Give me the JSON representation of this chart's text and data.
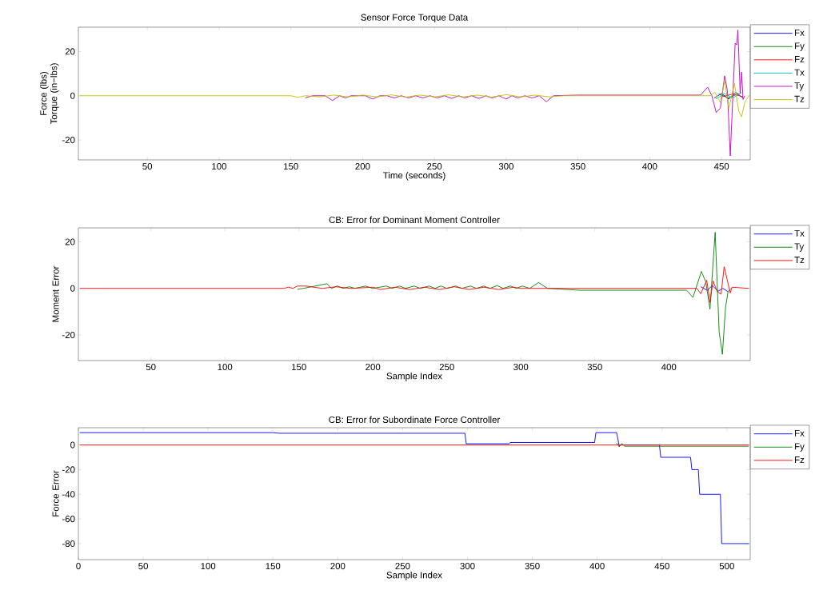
{
  "chart_data": [
    {
      "type": "line",
      "title": "Sensor Force Torque Data",
      "xlabel": "Time (seconds)",
      "ylabel": "Force (lbs) Torque (in−lbs)",
      "xlim": [
        2,
        470
      ],
      "ylim": [
        -29,
        31
      ],
      "xticks": [
        50,
        100,
        150,
        200,
        250,
        300,
        350,
        400,
        450
      ],
      "yticks": [
        -20,
        0,
        20
      ],
      "legend": "top right",
      "series": [
        {
          "name": "Fx",
          "color": "#0000ff",
          "x": [
            445,
            450,
            455,
            460,
            465
          ],
          "values": [
            -1,
            1,
            -1.5,
            1.5,
            -1
          ]
        },
        {
          "name": "Fy",
          "color": "#008000",
          "x": [
            448,
            455,
            462
          ],
          "values": [
            0.8,
            -1,
            1
          ]
        },
        {
          "name": "Fz",
          "color": "#ff0000",
          "x": [
            450,
            458,
            465
          ],
          "values": [
            -0.5,
            0.8,
            -0.5
          ]
        },
        {
          "name": "Tx",
          "color": "#00bfbf",
          "x": [
            446,
            452,
            458,
            464
          ],
          "values": [
            -1.5,
            1,
            -1,
            1.5
          ]
        },
        {
          "name": "Ty",
          "color": "#bf00bf",
          "x": [
            160,
            165,
            174,
            179,
            184,
            188,
            192,
            202,
            207,
            212,
            217,
            222,
            227,
            232,
            237,
            242,
            247,
            252,
            257,
            262,
            267,
            271,
            276,
            281,
            286,
            290,
            295,
            300,
            304,
            308,
            313,
            318,
            323,
            328,
            333,
            350,
            435.4,
            440.3,
            443.3,
            446.3,
            449.2,
            452.2,
            454.1,
            456.1,
            459.5,
            460.6,
            461.4,
            463,
            464,
            465,
            466.2
          ],
          "values": [
            -1,
            0,
            0,
            -2.2,
            0,
            -1,
            0,
            0,
            -1.5,
            0,
            0,
            -1,
            0,
            -1,
            0,
            -1,
            0,
            -1,
            0,
            -1.2,
            0,
            -1,
            0,
            -1.2,
            0,
            -1,
            0,
            -1.5,
            0,
            -1,
            0,
            -1,
            0,
            -2.7,
            0,
            0.3,
            0.3,
            3.9,
            0,
            -7.6,
            -5.6,
            9,
            2.2,
            -27.2,
            23.8,
            23,
            29.7,
            1,
            10.7,
            -1.7,
            0
          ]
        },
        {
          "name": "Tz",
          "color": "#bfbf00",
          "x": [
            3,
            150,
            155,
            160,
            170,
            180,
            190,
            200,
            210,
            220,
            230,
            240,
            250,
            260,
            270,
            280,
            290,
            300,
            310,
            320,
            330,
            340,
            442.3,
            445.3,
            449.2,
            452.2,
            455.1,
            459,
            462,
            464,
            466.2,
            469
          ],
          "values": [
            0,
            0,
            -0.7,
            0,
            -0.5,
            0.3,
            -0.5,
            0.3,
            -0.5,
            0.4,
            -0.6,
            0.3,
            -0.5,
            0.4,
            -0.5,
            0.3,
            -0.6,
            0.5,
            -0.5,
            0.3,
            -0.5,
            0,
            0,
            1.6,
            -3,
            6.8,
            -5.6,
            5.5,
            -7,
            -9.5,
            -3,
            0
          ]
        }
      ]
    },
    {
      "type": "line",
      "title": "CB: Error for Dominant Moment Controller",
      "xlabel": "Sample Index",
      "ylabel": "Moment Error",
      "xlim": [
        1,
        455
      ],
      "ylim": [
        -31,
        26
      ],
      "xticks": [
        50,
        100,
        150,
        200,
        250,
        300,
        350,
        400
      ],
      "yticks": [
        -20,
        0,
        20
      ],
      "legend": "top right",
      "series": [
        {
          "name": "Tx",
          "color": "#0000ff",
          "x": [
            421.6,
            425.9,
            429.4,
            433.3,
            436.5,
            440
          ],
          "values": [
            0.7,
            -0.8,
            1.2,
            -1.2,
            0,
            -1.4
          ]
        },
        {
          "name": "Ty",
          "color": "#008000",
          "x": [
            149,
            153,
            169,
            172,
            176,
            180,
            184,
            188,
            195,
            200,
            209,
            213,
            218,
            222,
            228,
            232,
            238,
            242,
            246,
            250,
            256,
            260,
            266,
            270,
            275,
            279,
            284,
            288,
            293,
            297,
            301,
            306,
            312,
            318,
            340,
            412,
            416.3,
            422,
            425,
            427.8,
            431.3,
            434,
            436.2,
            438.3,
            440,
            442
          ],
          "values": [
            -0.4,
            0,
            2.0,
            0,
            1,
            0,
            0.7,
            0,
            1,
            0,
            1,
            0,
            1,
            0,
            1,
            0,
            1,
            0,
            1,
            0,
            1,
            0,
            1,
            0,
            1,
            0,
            1.2,
            0,
            1,
            0,
            1,
            0,
            2.5,
            0,
            -0.8,
            -0.8,
            -3.9,
            7.3,
            2.7,
            -8.9,
            24.1,
            -18.8,
            -28.3,
            -8.3,
            -1.4,
            0
          ]
        },
        {
          "name": "Tz",
          "color": "#ff0000",
          "x": [
            2,
            140,
            143,
            146,
            149,
            155,
            160,
            166,
            175,
            185,
            200,
            205,
            215,
            225,
            235,
            245,
            255,
            265,
            275,
            285,
            295,
            300,
            419,
            421.6,
            425.6,
            427.8,
            429.9,
            432.7,
            435.3,
            437.4,
            439.2,
            441.5,
            442.7,
            454
          ],
          "values": [
            0,
            0,
            0.5,
            0,
            1,
            1,
            0.5,
            0,
            0.7,
            0,
            0.5,
            -0.5,
            0.5,
            -0.5,
            0.5,
            -0.5,
            0.7,
            -0.5,
            0.5,
            -0.5,
            0.5,
            0,
            0,
            -2.3,
            3.5,
            -6,
            3.2,
            -1.4,
            -2.5,
            9.3,
            4.4,
            -2,
            0.5,
            0
          ]
        }
      ]
    },
    {
      "type": "line",
      "title": "CB: Error for Subordinate Force Controller",
      "xlabel": "Sample Index",
      "ylabel": "Force Error",
      "xlim": [
        0,
        518
      ],
      "ylim": [
        -93,
        14
      ],
      "xticks": [
        0,
        50,
        100,
        150,
        200,
        250,
        300,
        350,
        400,
        450,
        500
      ],
      "yticks": [
        -80,
        -60,
        -40,
        -20,
        0
      ],
      "legend": "top right",
      "series": [
        {
          "name": "Fx",
          "color": "#0000ff",
          "x": [
            1,
            150,
            155,
            298,
            299,
            332,
            333,
            398,
            399,
            415,
            417,
            418,
            448,
            449,
            472,
            473,
            478,
            479,
            495,
            496,
            517
          ],
          "values": [
            10,
            10,
            9.5,
            9.5,
            1,
            1,
            2,
            2,
            10,
            10,
            -1,
            0,
            0,
            -10,
            -10,
            -20,
            -20,
            -40,
            -40,
            -80,
            -80
          ]
        },
        {
          "name": "Fy",
          "color": "#008000",
          "x": [
            415,
            417,
            419,
            421,
            517
          ],
          "values": [
            1.5,
            -1.5,
            1.2,
            -1,
            -1
          ]
        },
        {
          "name": "Fz",
          "color": "#ff0000",
          "x": [
            1,
            517
          ],
          "values": [
            0,
            0
          ]
        }
      ]
    }
  ]
}
